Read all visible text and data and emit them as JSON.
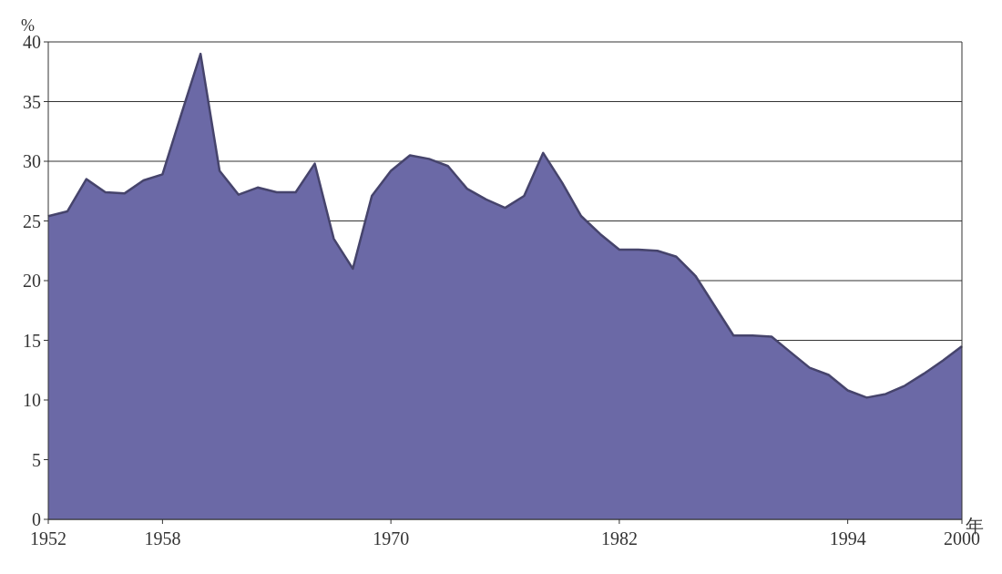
{
  "chart_data": {
    "type": "area",
    "xlabel": "年",
    "ylabel": "%",
    "x": [
      1952,
      1953,
      1954,
      1955,
      1956,
      1957,
      1958,
      1959,
      1960,
      1961,
      1962,
      1963,
      1964,
      1965,
      1966,
      1967,
      1968,
      1969,
      1970,
      1971,
      1972,
      1973,
      1974,
      1975,
      1976,
      1977,
      1978,
      1979,
      1980,
      1981,
      1982,
      1983,
      1984,
      1985,
      1986,
      1987,
      1988,
      1989,
      1990,
      1991,
      1992,
      1993,
      1994,
      1995,
      1996,
      1997,
      1998,
      1999,
      2000
    ],
    "series": [
      {
        "color": "#6b69a6",
        "values": [
          25.4,
          25.8,
          28.5,
          27.4,
          27.3,
          28.4,
          28.9,
          34,
          39,
          29.2,
          27.2,
          27.8,
          27.4,
          27.4,
          29.8,
          23.5,
          21,
          27.1,
          29.2,
          30.5,
          30.2,
          29.6,
          27.7,
          26.8,
          26.1,
          27.1,
          30.7,
          28.2,
          25.4,
          23.9,
          22.6,
          22.6,
          22.5,
          22,
          20.4,
          17.9,
          15.4,
          15.4,
          15.3,
          14,
          12.7,
          12.1,
          10.8,
          10.2,
          10.5,
          11.2,
          12.2,
          13.3,
          14.5
        ]
      }
    ],
    "xlim": [
      1952,
      2000
    ],
    "xticks": [
      1952,
      1958,
      1970,
      1982,
      1994,
      2000
    ],
    "ylim": [
      0,
      40
    ],
    "yticks": [
      0,
      5,
      10,
      15,
      20,
      25,
      30,
      35,
      40
    ],
    "grid": "y"
  }
}
